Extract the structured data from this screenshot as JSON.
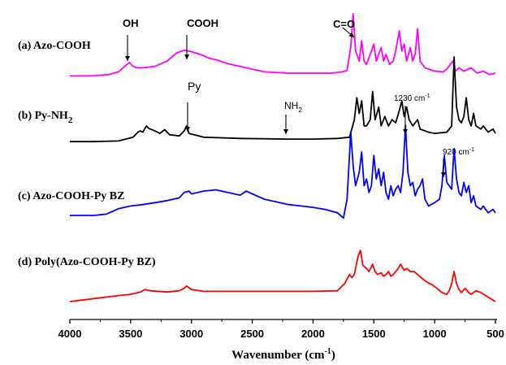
{
  "chart_data": {
    "type": "line",
    "xlabel": "Wavenumber (cm",
    "xlabel_sup": "-1",
    "xlabel_end": ")",
    "xlim": [
      4000,
      500
    ],
    "x_reversed": true,
    "ylabel": "",
    "y_ticks_shown": false,
    "grid": false,
    "x_ticks": [
      4000,
      3500,
      3000,
      2500,
      2000,
      1500,
      1000,
      500
    ],
    "x_tick_labels": [
      "4000",
      "3500",
      "3000",
      "2500",
      "2000",
      "1500",
      "1000",
      "500"
    ],
    "series": [
      {
        "name": "(a) Azo-COOH",
        "color": "#ff00ff",
        "points": [
          [
            4000,
            0.08
          ],
          [
            3820,
            0.08
          ],
          [
            3680,
            0.1
          ],
          [
            3600,
            0.14
          ],
          [
            3550,
            0.22
          ],
          [
            3510,
            0.28
          ],
          [
            3480,
            0.22
          ],
          [
            3450,
            0.2
          ],
          [
            3400,
            0.2
          ],
          [
            3300,
            0.22
          ],
          [
            3200,
            0.3
          ],
          [
            3120,
            0.42
          ],
          [
            3060,
            0.46
          ],
          [
            3000,
            0.44
          ],
          [
            2900,
            0.38
          ],
          [
            2850,
            0.34
          ],
          [
            2800,
            0.32
          ],
          [
            2700,
            0.26
          ],
          [
            2600,
            0.22
          ],
          [
            2550,
            0.2
          ],
          [
            2400,
            0.14
          ],
          [
            2200,
            0.12
          ],
          [
            2000,
            0.12
          ],
          [
            1850,
            0.12
          ],
          [
            1760,
            0.14
          ],
          [
            1720,
            0.16
          ],
          [
            1690,
            0.5
          ],
          [
            1670,
            1.0
          ],
          [
            1650,
            0.45
          ],
          [
            1620,
            0.3
          ],
          [
            1600,
            0.6
          ],
          [
            1580,
            0.3
          ],
          [
            1560,
            0.25
          ],
          [
            1540,
            0.35
          ],
          [
            1500,
            0.55
          ],
          [
            1480,
            0.3
          ],
          [
            1440,
            0.5
          ],
          [
            1420,
            0.3
          ],
          [
            1400,
            0.4
          ],
          [
            1370,
            0.25
          ],
          [
            1340,
            0.3
          ],
          [
            1320,
            0.45
          ],
          [
            1290,
            0.75
          ],
          [
            1270,
            0.45
          ],
          [
            1250,
            0.55
          ],
          [
            1230,
            0.3
          ],
          [
            1200,
            0.5
          ],
          [
            1180,
            0.3
          ],
          [
            1160,
            0.4
          ],
          [
            1140,
            0.78
          ],
          [
            1120,
            0.3
          ],
          [
            1080,
            0.2
          ],
          [
            1000,
            0.15
          ],
          [
            930,
            0.14
          ],
          [
            900,
            0.18
          ],
          [
            850,
            0.3
          ],
          [
            830,
            0.15
          ],
          [
            800,
            0.2
          ],
          [
            760,
            0.15
          ],
          [
            700,
            0.2
          ],
          [
            650,
            0.12
          ],
          [
            600,
            0.15
          ],
          [
            550,
            0.1
          ],
          [
            500,
            0.12
          ]
        ]
      },
      {
        "name": "(b) Py-NH2",
        "color": "#000000",
        "points": [
          [
            4000,
            0.05
          ],
          [
            3800,
            0.05
          ],
          [
            3600,
            0.06
          ],
          [
            3480,
            0.12
          ],
          [
            3440,
            0.2
          ],
          [
            3420,
            0.22
          ],
          [
            3400,
            0.2
          ],
          [
            3370,
            0.3
          ],
          [
            3350,
            0.26
          ],
          [
            3300,
            0.22
          ],
          [
            3260,
            0.18
          ],
          [
            3220,
            0.24
          ],
          [
            3180,
            0.16
          ],
          [
            3100,
            0.14
          ],
          [
            3060,
            0.22
          ],
          [
            3040,
            0.3
          ],
          [
            3020,
            0.18
          ],
          [
            2900,
            0.12
          ],
          [
            2600,
            0.1
          ],
          [
            2200,
            0.09
          ],
          [
            2000,
            0.09
          ],
          [
            1800,
            0.1
          ],
          [
            1700,
            0.12
          ],
          [
            1660,
            0.4
          ],
          [
            1640,
            0.75
          ],
          [
            1620,
            0.5
          ],
          [
            1600,
            0.7
          ],
          [
            1580,
            0.3
          ],
          [
            1560,
            0.3
          ],
          [
            1530,
            0.4
          ],
          [
            1510,
            0.85
          ],
          [
            1490,
            0.4
          ],
          [
            1460,
            0.6
          ],
          [
            1440,
            0.3
          ],
          [
            1410,
            0.45
          ],
          [
            1380,
            0.3
          ],
          [
            1350,
            0.4
          ],
          [
            1320,
            0.35
          ],
          [
            1290,
            0.55
          ],
          [
            1270,
            0.7
          ],
          [
            1250,
            0.45
          ],
          [
            1230,
            0.6
          ],
          [
            1210,
            0.4
          ],
          [
            1180,
            0.3
          ],
          [
            1140,
            0.4
          ],
          [
            1120,
            0.25
          ],
          [
            1050,
            0.2
          ],
          [
            1000,
            0.18
          ],
          [
            900,
            0.2
          ],
          [
            860,
            0.3
          ],
          [
            840,
            1.4
          ],
          [
            820,
            0.6
          ],
          [
            800,
            0.4
          ],
          [
            780,
            0.35
          ],
          [
            760,
            0.45
          ],
          [
            740,
            0.75
          ],
          [
            720,
            0.4
          ],
          [
            700,
            0.3
          ],
          [
            680,
            0.5
          ],
          [
            660,
            0.3
          ],
          [
            620,
            0.25
          ],
          [
            600,
            0.3
          ],
          [
            560,
            0.2
          ],
          [
            520,
            0.25
          ],
          [
            500,
            0.18
          ]
        ]
      },
      {
        "name": "(c) Azo-COOH-Py BZ",
        "color": "#0000ff",
        "points": [
          [
            4000,
            0.06
          ],
          [
            3800,
            0.06
          ],
          [
            3700,
            0.08
          ],
          [
            3600,
            0.16
          ],
          [
            3500,
            0.2
          ],
          [
            3400,
            0.22
          ],
          [
            3300,
            0.25
          ],
          [
            3200,
            0.28
          ],
          [
            3100,
            0.32
          ],
          [
            3060,
            0.4
          ],
          [
            3020,
            0.42
          ],
          [
            3000,
            0.38
          ],
          [
            2900,
            0.42
          ],
          [
            2800,
            0.44
          ],
          [
            2700,
            0.4
          ],
          [
            2600,
            0.36
          ],
          [
            2550,
            0.42
          ],
          [
            2500,
            0.38
          ],
          [
            2400,
            0.3
          ],
          [
            2300,
            0.26
          ],
          [
            2200,
            0.22
          ],
          [
            2100,
            0.2
          ],
          [
            2000,
            0.18
          ],
          [
            1900,
            0.15
          ],
          [
            1800,
            0.1
          ],
          [
            1750,
            0.02
          ],
          [
            1720,
            0.3
          ],
          [
            1700,
            0.95
          ],
          [
            1690,
            1.3
          ],
          [
            1670,
            0.8
          ],
          [
            1650,
            0.5
          ],
          [
            1620,
            0.7
          ],
          [
            1600,
            1.0
          ],
          [
            1580,
            0.5
          ],
          [
            1560,
            0.6
          ],
          [
            1540,
            0.4
          ],
          [
            1520,
            0.5
          ],
          [
            1500,
            0.95
          ],
          [
            1480,
            0.6
          ],
          [
            1460,
            0.75
          ],
          [
            1440,
            0.5
          ],
          [
            1420,
            0.7
          ],
          [
            1400,
            0.4
          ],
          [
            1380,
            0.3
          ],
          [
            1360,
            0.5
          ],
          [
            1340,
            0.35
          ],
          [
            1320,
            0.45
          ],
          [
            1300,
            0.5
          ],
          [
            1280,
            0.4
          ],
          [
            1260,
            0.7
          ],
          [
            1240,
            1.4
          ],
          [
            1220,
            0.7
          ],
          [
            1200,
            0.5
          ],
          [
            1180,
            0.55
          ],
          [
            1160,
            0.35
          ],
          [
            1140,
            0.45
          ],
          [
            1120,
            0.5
          ],
          [
            1100,
            0.6
          ],
          [
            1080,
            0.3
          ],
          [
            1050,
            0.2
          ],
          [
            1000,
            0.25
          ],
          [
            960,
            0.3
          ],
          [
            940,
            0.5
          ],
          [
            920,
            0.95
          ],
          [
            900,
            0.55
          ],
          [
            880,
            0.5
          ],
          [
            860,
            0.45
          ],
          [
            840,
            1.05
          ],
          [
            820,
            0.6
          ],
          [
            800,
            0.4
          ],
          [
            780,
            0.35
          ],
          [
            760,
            0.55
          ],
          [
            740,
            0.4
          ],
          [
            720,
            0.5
          ],
          [
            700,
            0.25
          ],
          [
            680,
            0.35
          ],
          [
            660,
            0.2
          ],
          [
            620,
            0.15
          ],
          [
            600,
            0.2
          ],
          [
            560,
            0.1
          ],
          [
            520,
            0.15
          ],
          [
            500,
            0.1
          ]
        ]
      },
      {
        "name": "(d) Poly(Azo-COOH-Py BZ)",
        "color": "#ff0000",
        "points": [
          [
            4000,
            0.0
          ],
          [
            3800,
            0.05
          ],
          [
            3600,
            0.1
          ],
          [
            3500,
            0.12
          ],
          [
            3420,
            0.16
          ],
          [
            3380,
            0.2
          ],
          [
            3340,
            0.18
          ],
          [
            3200,
            0.16
          ],
          [
            3100,
            0.18
          ],
          [
            3060,
            0.22
          ],
          [
            3040,
            0.26
          ],
          [
            3000,
            0.2
          ],
          [
            2900,
            0.17
          ],
          [
            2600,
            0.17
          ],
          [
            2300,
            0.17
          ],
          [
            2000,
            0.17
          ],
          [
            1800,
            0.18
          ],
          [
            1740,
            0.3
          ],
          [
            1700,
            0.45
          ],
          [
            1680,
            0.4
          ],
          [
            1660,
            0.45
          ],
          [
            1630,
            0.75
          ],
          [
            1610,
            0.85
          ],
          [
            1590,
            0.6
          ],
          [
            1560,
            0.55
          ],
          [
            1540,
            0.5
          ],
          [
            1510,
            0.62
          ],
          [
            1490,
            0.5
          ],
          [
            1470,
            0.45
          ],
          [
            1440,
            0.48
          ],
          [
            1420,
            0.42
          ],
          [
            1400,
            0.45
          ],
          [
            1380,
            0.5
          ],
          [
            1360,
            0.42
          ],
          [
            1340,
            0.45
          ],
          [
            1300,
            0.55
          ],
          [
            1280,
            0.62
          ],
          [
            1250,
            0.52
          ],
          [
            1230,
            0.55
          ],
          [
            1200,
            0.5
          ],
          [
            1170,
            0.5
          ],
          [
            1140,
            0.45
          ],
          [
            1100,
            0.38
          ],
          [
            1060,
            0.32
          ],
          [
            1020,
            0.28
          ],
          [
            980,
            0.22
          ],
          [
            940,
            0.15
          ],
          [
            900,
            0.12
          ],
          [
            880,
            0.18
          ],
          [
            860,
            0.3
          ],
          [
            840,
            0.5
          ],
          [
            820,
            0.3
          ],
          [
            800,
            0.2
          ],
          [
            780,
            0.15
          ],
          [
            750,
            0.22
          ],
          [
            720,
            0.15
          ],
          [
            700,
            0.12
          ],
          [
            660,
            0.18
          ],
          [
            620,
            0.15
          ],
          [
            580,
            0.1
          ],
          [
            540,
            0.05
          ],
          [
            500,
            0.0
          ]
        ]
      }
    ],
    "annotations": [
      {
        "text": "OH",
        "bold": true,
        "sans": true,
        "series": 0,
        "x": 3520
      },
      {
        "text": "COOH",
        "bold": true,
        "sans": true,
        "series": 0,
        "x": 3000
      },
      {
        "text": "C=O",
        "bold": true,
        "sans": true,
        "series": 0,
        "x": 1670
      },
      {
        "text": "NH",
        "sub": "2",
        "bold": false,
        "sans": true,
        "series": 1,
        "x": 3370
      },
      {
        "text": "Py",
        "bold": false,
        "sans": true,
        "series": 1,
        "x": 3040
      },
      {
        "text": "1230 cm",
        "sup": "-1",
        "bold": false,
        "sans": true,
        "series": 2,
        "x": 1230
      },
      {
        "text": "920 cm",
        "sup": "-1",
        "bold": false,
        "sans": true,
        "series": 2,
        "x": 920
      }
    ]
  }
}
